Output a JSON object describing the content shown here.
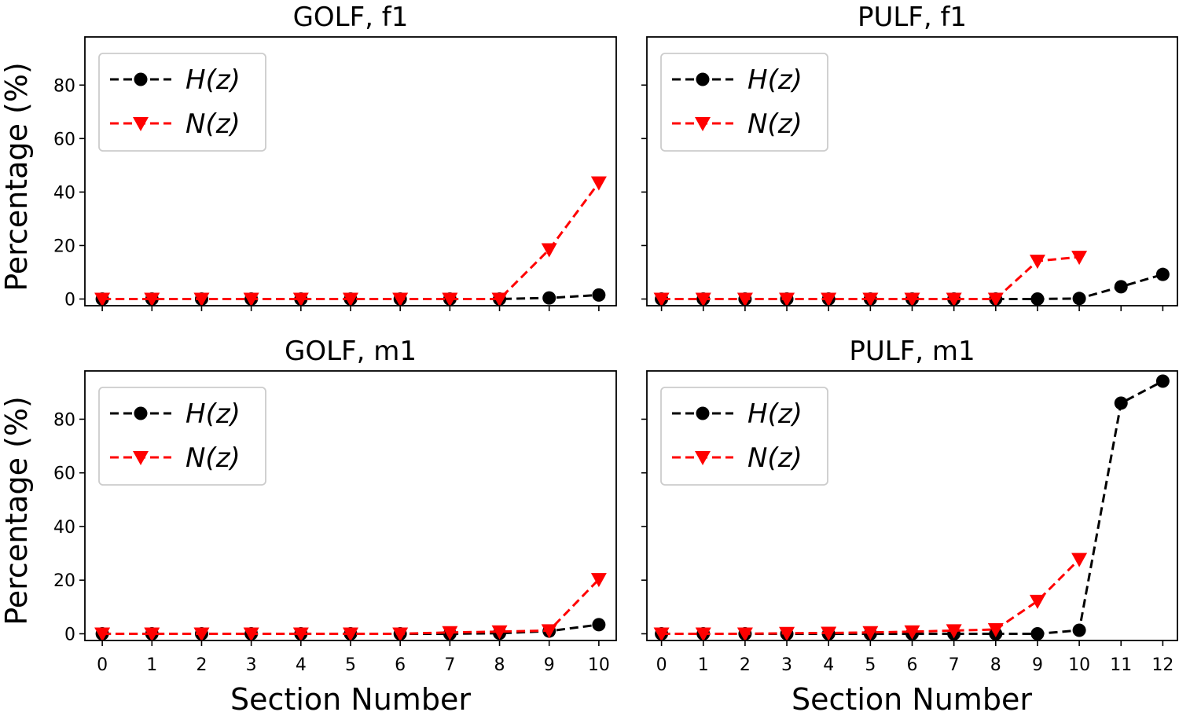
{
  "figure": {
    "xlabel": "Section Number",
    "ylabel": "Percentage (%)"
  },
  "chart_data": [
    {
      "type": "line",
      "title": "GOLF, f1",
      "xlabel": "",
      "ylabel": "Percentage (%)",
      "x": [
        0,
        1,
        2,
        3,
        4,
        5,
        6,
        7,
        8,
        9,
        10
      ],
      "ylim": [
        -2.5,
        98
      ],
      "yticks": [
        0,
        20,
        40,
        60,
        80
      ],
      "xtick_labels_shown": false,
      "legend": "upper-left",
      "series": [
        {
          "name": "H(z)",
          "color": "#000000",
          "marker": "circle",
          "values": [
            0,
            0,
            0,
            0,
            0,
            0,
            0,
            0,
            0,
            0.4,
            1.5
          ]
        },
        {
          "name": "N(z)",
          "color": "#ff0000",
          "marker": "triangle-down",
          "values": [
            0,
            0,
            0,
            0,
            0,
            0,
            0,
            0,
            0,
            18.5,
            43.5
          ]
        }
      ]
    },
    {
      "type": "line",
      "title": "PULF, f1",
      "xlabel": "",
      "ylabel": "",
      "x": [
        0,
        1,
        2,
        3,
        4,
        5,
        6,
        7,
        8,
        9,
        10,
        11,
        12
      ],
      "ylim": [
        -2.5,
        98
      ],
      "yticks": [
        0,
        20,
        40,
        60,
        80
      ],
      "xtick_labels_shown": false,
      "ytick_labels_shown": false,
      "legend": "upper-left",
      "series": [
        {
          "name": "H(z)",
          "color": "#000000",
          "marker": "circle",
          "values": [
            0,
            0,
            0,
            0,
            0,
            0,
            0,
            0,
            0,
            0,
            0.2,
            4.6,
            9.2
          ]
        },
        {
          "name": "N(z)",
          "color": "#ff0000",
          "marker": "triangle-down",
          "values": [
            0,
            0,
            0,
            0,
            0,
            0,
            0,
            0,
            0,
            14.2,
            15.7,
            null,
            null
          ]
        }
      ]
    },
    {
      "type": "line",
      "title": "GOLF, m1",
      "xlabel": "Section Number",
      "ylabel": "Percentage (%)",
      "x": [
        0,
        1,
        2,
        3,
        4,
        5,
        6,
        7,
        8,
        9,
        10
      ],
      "ylim": [
        -2.5,
        98
      ],
      "yticks": [
        0,
        20,
        40,
        60,
        80
      ],
      "xtick_labels_shown": true,
      "legend": "upper-left",
      "series": [
        {
          "name": "H(z)",
          "color": "#000000",
          "marker": "circle",
          "values": [
            0,
            0,
            0,
            0,
            0,
            0,
            0,
            0,
            0.2,
            1,
            3.4
          ]
        },
        {
          "name": "N(z)",
          "color": "#ff0000",
          "marker": "triangle-down",
          "values": [
            0,
            0,
            0,
            0,
            0,
            0,
            0,
            0.5,
            0.8,
            1.2,
            20.3
          ]
        }
      ]
    },
    {
      "type": "line",
      "title": "PULF, m1",
      "xlabel": "Section Number",
      "ylabel": "",
      "x": [
        0,
        1,
        2,
        3,
        4,
        5,
        6,
        7,
        8,
        9,
        10,
        11,
        12
      ],
      "ylim": [
        -2.5,
        98
      ],
      "yticks": [
        0,
        20,
        40,
        60,
        80
      ],
      "xtick_labels_shown": true,
      "ytick_labels_shown": false,
      "legend": "upper-left",
      "series": [
        {
          "name": "H(z)",
          "color": "#000000",
          "marker": "circle",
          "values": [
            0,
            0,
            0,
            0,
            0,
            0,
            0,
            0,
            0,
            0,
            1.3,
            86,
            94.2
          ]
        },
        {
          "name": "N(z)",
          "color": "#ff0000",
          "marker": "triangle-down",
          "values": [
            0,
            0,
            0,
            0.2,
            0.3,
            0.5,
            0.8,
            1.2,
            1.6,
            12.2,
            27.8,
            null,
            null
          ]
        }
      ]
    }
  ]
}
